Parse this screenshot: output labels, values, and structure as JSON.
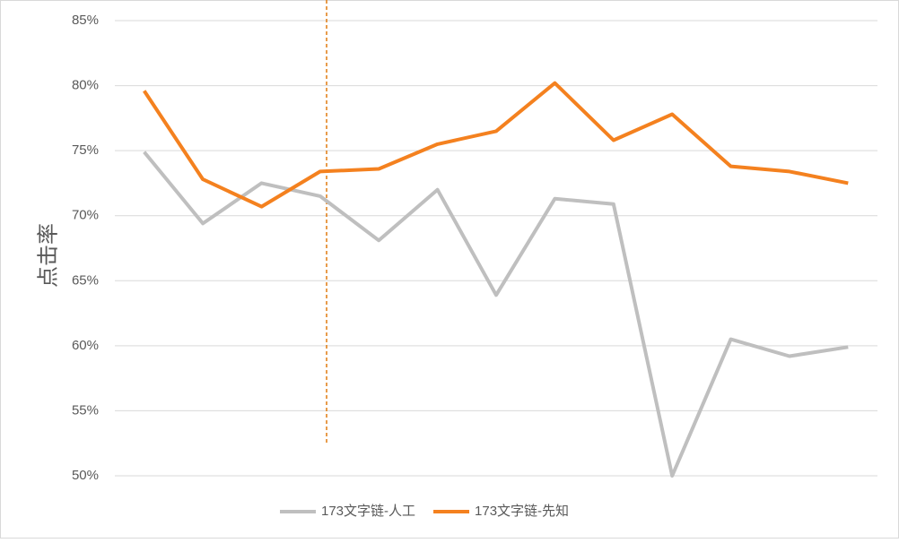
{
  "chart_data": {
    "type": "line",
    "y_label": "点击率",
    "categories": [
      null,
      null,
      null,
      null,
      null,
      null,
      null,
      null,
      null,
      null,
      null,
      null,
      null
    ],
    "series": [
      {
        "name": "173文字链-人工",
        "color": "#bfbfbf",
        "values": [
          74.9,
          69.4,
          72.5,
          71.5,
          68.1,
          72.0,
          63.9,
          71.3,
          70.9,
          50.0,
          60.5,
          59.2,
          59.9
        ]
      },
      {
        "name": "173文字链-先知",
        "color": "#f4811f",
        "values": [
          79.6,
          72.8,
          70.7,
          73.4,
          73.6,
          75.5,
          76.5,
          80.2,
          75.8,
          77.8,
          73.8,
          73.4,
          72.5
        ]
      }
    ],
    "ylim": [
      50,
      85
    ],
    "yticks": [
      {
        "value": 50,
        "label": "50%"
      },
      {
        "value": 55,
        "label": "55%"
      },
      {
        "value": 60,
        "label": "60%"
      },
      {
        "value": 65,
        "label": "65%"
      },
      {
        "value": 70,
        "label": "70%"
      },
      {
        "value": 75,
        "label": "75%"
      },
      {
        "value": 80,
        "label": "80%"
      },
      {
        "value": 85,
        "label": "85%"
      }
    ],
    "grid": true,
    "legend": "bottom"
  }
}
